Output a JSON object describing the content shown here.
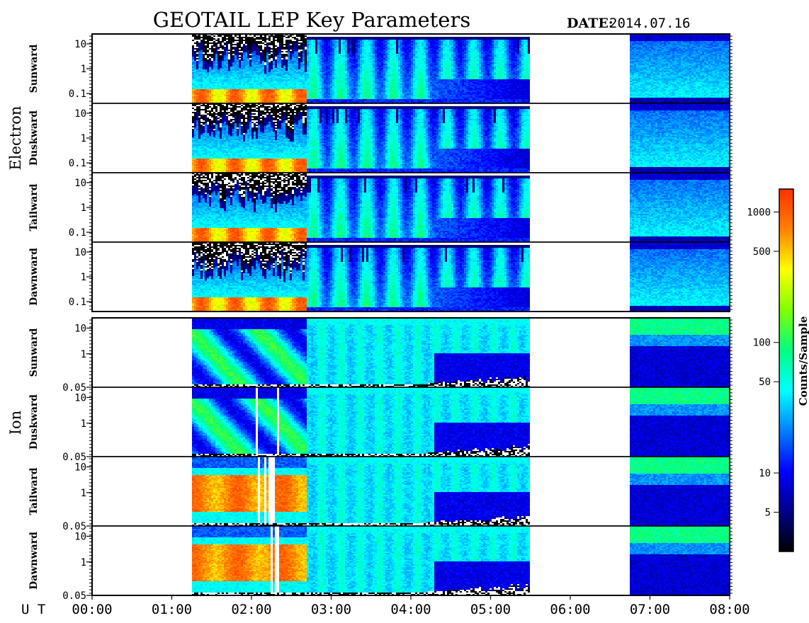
{
  "title": "GEOTAIL LEP Key Parameters",
  "date_label": "DATE:",
  "date_value": "2014.07.16",
  "ut_label": "U T",
  "x_ticks": [
    "00:00",
    "01:00",
    "02:00",
    "03:00",
    "04:00",
    "05:00",
    "06:00",
    "07:00",
    "08:00"
  ],
  "colorbar": {
    "label": "Counts/Sample",
    "ticks": [
      "5",
      "10",
      "50",
      "100",
      "500",
      "1000"
    ],
    "tick_values": [
      5,
      10,
      50,
      100,
      500,
      1000
    ],
    "range": [
      2.5,
      1500
    ],
    "scale": "log",
    "colors": [
      "#000000",
      "#00008b",
      "#0000ff",
      "#0080ff",
      "#00ffff",
      "#00ff80",
      "#80ff00",
      "#ffff00",
      "#ff8000",
      "#ff3000"
    ]
  },
  "chart_data": {
    "type": "heatmap",
    "x_axis": {
      "ticks": [
        "00:00",
        "01:00",
        "02:00",
        "03:00",
        "04:00",
        "05:00",
        "06:00",
        "07:00",
        "08:00"
      ],
      "range_hours": [
        0,
        8
      ]
    },
    "data_intervals_hours": [
      [
        1.25,
        5.5
      ],
      [
        6.75,
        8.0
      ]
    ],
    "groups": [
      {
        "name": "Electron",
        "y_ticks": [
          "10",
          "1",
          "0.1"
        ],
        "y_tick_values": [
          10,
          1,
          0.1
        ],
        "y_range": [
          0.04,
          25
        ],
        "panels": [
          {
            "label": "Sunward"
          },
          {
            "label": "Duskward"
          },
          {
            "label": "Tailward"
          },
          {
            "label": "Dawnward"
          }
        ]
      },
      {
        "name": "Ion",
        "y_ticks": [
          "10",
          "1",
          "0.05"
        ],
        "y_tick_values": [
          10,
          1,
          0.05
        ],
        "y_range": [
          0.05,
          25
        ],
        "panels": [
          {
            "label": "Sunward"
          },
          {
            "label": "Duskward"
          },
          {
            "label": "Tailward"
          },
          {
            "label": "Dawnward"
          }
        ]
      }
    ]
  }
}
